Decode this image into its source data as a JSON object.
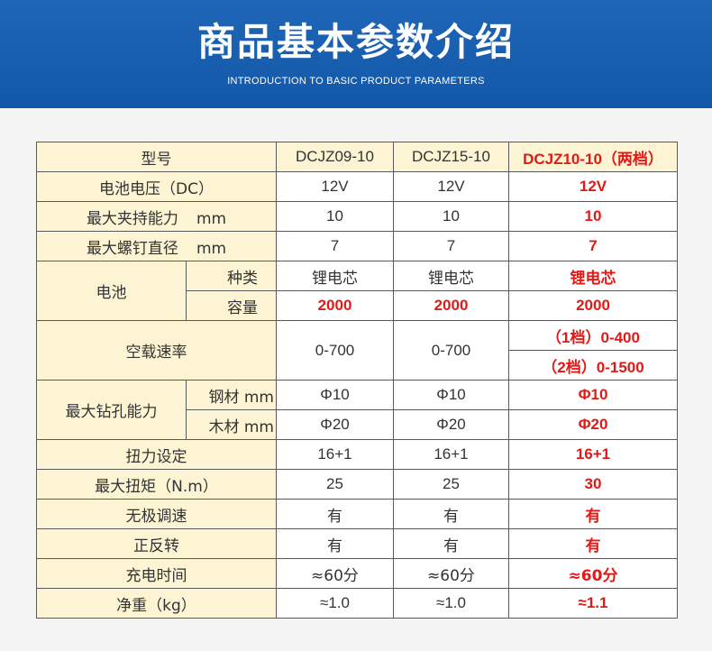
{
  "header": {
    "title": "商品基本参数介绍",
    "subtitle": "INTRODUCTION TO BASIC PRODUCT PARAMETERS"
  },
  "table": {
    "model_label": "型号",
    "models": [
      "DCJZ09-10",
      "DCJZ15-10",
      "DCJZ10-10（两档）"
    ],
    "voltage": {
      "label": "电池电压（DC）",
      "values": [
        "12V",
        "12V",
        "12V"
      ]
    },
    "clamp": {
      "label": "最大夹持能力",
      "unit": "mm",
      "values": [
        "10",
        "10",
        "10"
      ]
    },
    "screw": {
      "label": "最大螺钉直径",
      "unit": "mm",
      "values": [
        "7",
        "7",
        "7"
      ]
    },
    "battery": {
      "label": "电池",
      "type": {
        "label": "种类",
        "values": [
          "锂电芯",
          "锂电芯",
          "锂电芯"
        ]
      },
      "capacity": {
        "label": "容量",
        "values": [
          "2000",
          "2000",
          "2000"
        ]
      }
    },
    "speed": {
      "label": "空载速率",
      "values": [
        "0-700",
        "0-700"
      ],
      "gear1": "（1档）0-400",
      "gear2": "（2档）0-1500"
    },
    "drill": {
      "label": "最大钻孔能力",
      "steel": {
        "label": "钢材 mm",
        "values": [
          "Φ10",
          "Φ10",
          "Φ10"
        ]
      },
      "wood": {
        "label": "木材 mm",
        "values": [
          "Φ20",
          "Φ20",
          "Φ20"
        ]
      }
    },
    "torque_setting": {
      "label": "扭力设定",
      "values": [
        "16+1",
        "16+1",
        "16+1"
      ]
    },
    "max_torque": {
      "label": "最大扭矩（N.m）",
      "values": [
        "25",
        "25",
        "30"
      ]
    },
    "stepless": {
      "label": "无极调速",
      "values": [
        "有",
        "有",
        "有"
      ]
    },
    "reverse": {
      "label": "正反转",
      "values": [
        "有",
        "有",
        "有"
      ]
    },
    "charge_time": {
      "label": "充电时间",
      "values": [
        "≈60分",
        "≈60分",
        "≈60分"
      ]
    },
    "weight": {
      "label": "净重（kg）",
      "values": [
        "≈1.0",
        "≈1.0",
        "≈1.1"
      ]
    },
    "colors": {
      "label_bg": "#fdf4d3",
      "highlight": "#e01a17",
      "border": "#5a5a5a"
    }
  }
}
